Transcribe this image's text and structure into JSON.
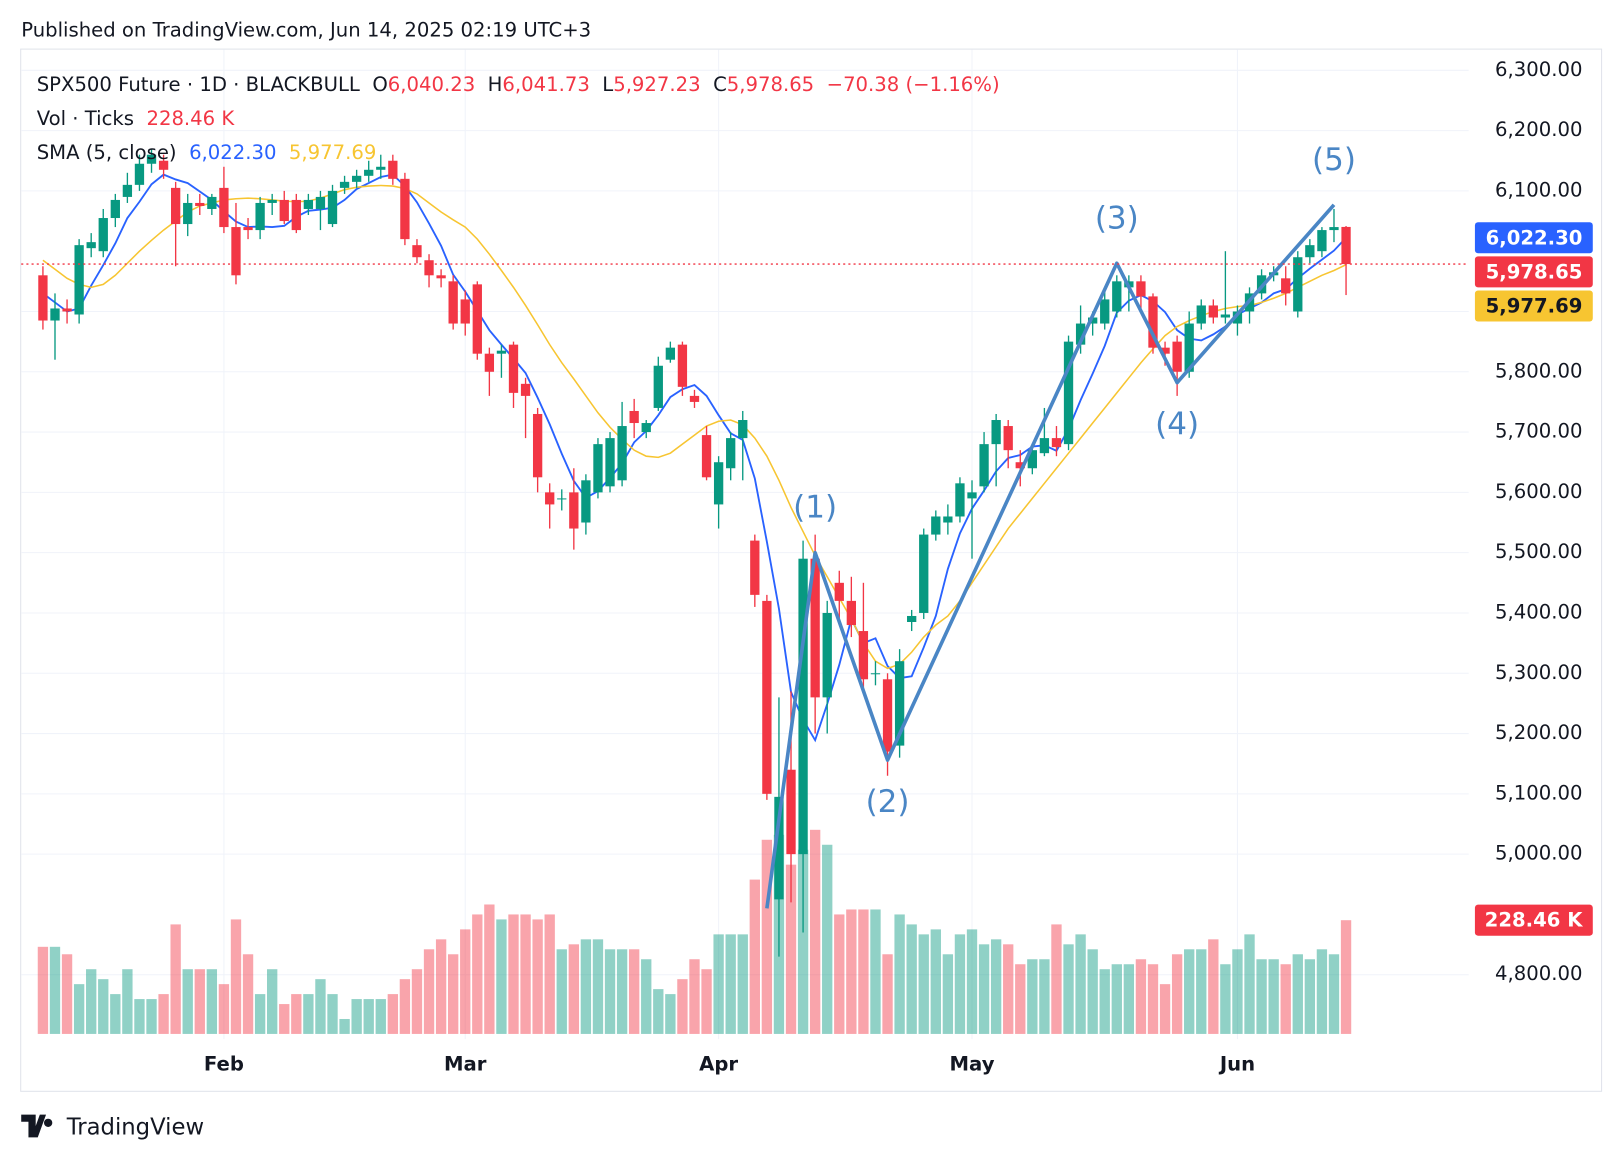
{
  "header": {
    "published": "Published on TradingView.com, Jun 14, 2025 02:19 UTC+3"
  },
  "chart_data": {
    "type": "candlestick",
    "legend": {
      "symbol": "SPX500 Future · 1D · BLACKBULL",
      "o_label": "O",
      "o": "6,040.23",
      "h_label": "H",
      "h": "6,041.73",
      "l_label": "L",
      "l": "5,927.23",
      "c_label": "C",
      "c": "5,978.65",
      "change": "−70.38 (−1.16%)",
      "volume_title": "Vol · Ticks",
      "volume": "228.46 K",
      "sma_title": "SMA (5, close)",
      "sma_fast": "6,022.30",
      "sma_slow": "5,977.69"
    },
    "categories": [
      null,
      null,
      null,
      null,
      null,
      null,
      null,
      null,
      null,
      null,
      null,
      null,
      null,
      null,
      null,
      "Feb",
      null,
      null,
      null,
      null,
      null,
      null,
      null,
      null,
      null,
      null,
      null,
      null,
      null,
      null,
      null,
      null,
      null,
      null,
      null,
      "Mar",
      null,
      null,
      null,
      null,
      null,
      null,
      null,
      null,
      null,
      null,
      null,
      null,
      null,
      null,
      null,
      null,
      null,
      null,
      null,
      null,
      "Apr",
      null,
      null,
      null,
      null,
      null,
      null,
      null,
      null,
      null,
      null,
      null,
      null,
      null,
      null,
      null,
      null,
      null,
      null,
      null,
      null,
      "May",
      null,
      null,
      null,
      null,
      null,
      null,
      null,
      null,
      null,
      null,
      null,
      null,
      null,
      null,
      null,
      null,
      null,
      null,
      null,
      null,
      null,
      "Jun",
      null,
      null,
      null,
      null,
      null,
      null,
      null,
      null,
      null
    ],
    "open": [
      5960,
      5885,
      5905,
      5895,
      6005,
      6000,
      6055,
      6090,
      6110,
      6145,
      6150,
      6105,
      6045,
      6080,
      6070,
      6105,
      6040,
      6040,
      6035,
      6080,
      6085,
      6085,
      6070,
      6070,
      6045,
      6105,
      6115,
      6125,
      6135,
      6150,
      6120,
      6010,
      5985,
      5960,
      5950,
      5920,
      5945,
      5830,
      5830,
      5845,
      5780,
      5730,
      5600,
      5590,
      5600,
      5550,
      5600,
      5610,
      5620,
      5735,
      5700,
      5740,
      5820,
      5845,
      5760,
      5695,
      5580,
      5640,
      5690,
      5520,
      5420,
      4925,
      5140,
      5000,
      5490,
      5260,
      5450,
      5420,
      5370,
      5300,
      5290,
      5180,
      5385,
      5400,
      5530,
      5550,
      5560,
      5590,
      5610,
      5680,
      5710,
      5650,
      5640,
      5665,
      5690,
      5680,
      5845,
      5880,
      5880,
      5900,
      5940,
      5950,
      5925,
      5840,
      5850,
      5800,
      5880,
      5910,
      5890,
      5880,
      5900,
      5930,
      5960,
      5955,
      5900,
      5990,
      6000,
      6035,
      6040.23
    ],
    "high": [
      5975,
      5930,
      5920,
      6020,
      6030,
      6070,
      6095,
      6130,
      6160,
      6170,
      6160,
      6115,
      6095,
      6095,
      6095,
      6140,
      6080,
      6055,
      6090,
      6095,
      6100,
      6095,
      6095,
      6100,
      6110,
      6125,
      6135,
      6150,
      6160,
      6160,
      6130,
      6020,
      5995,
      5970,
      5960,
      5935,
      5950,
      5840,
      5845,
      5850,
      5790,
      5740,
      5615,
      5605,
      5640,
      5630,
      5690,
      5700,
      5750,
      5755,
      5720,
      5825,
      5850,
      5850,
      5770,
      5710,
      5660,
      5700,
      5735,
      5530,
      5430,
      5260,
      5270,
      5520,
      5530,
      5420,
      5470,
      5460,
      5450,
      5320,
      5300,
      5340,
      5405,
      5540,
      5570,
      5580,
      5625,
      5620,
      5700,
      5730,
      5720,
      5670,
      5680,
      5740,
      5710,
      5860,
      5910,
      5900,
      5935,
      5960,
      5960,
      5960,
      5930,
      5850,
      5860,
      5900,
      5920,
      5920,
      6000,
      5910,
      5940,
      5970,
      5975,
      5975,
      6000,
      6020,
      6040,
      6070,
      6041.73
    ],
    "low": [
      5870,
      5820,
      5880,
      5880,
      5990,
      5990,
      6040,
      6080,
      6100,
      6130,
      6120,
      5975,
      6025,
      6060,
      6060,
      6030,
      5945,
      6020,
      6020,
      6060,
      6045,
      6030,
      6060,
      6035,
      6040,
      6095,
      6105,
      6115,
      6120,
      6110,
      6010,
      5980,
      5940,
      5940,
      5870,
      5860,
      5820,
      5760,
      5790,
      5740,
      5690,
      5600,
      5540,
      5570,
      5505,
      5530,
      5590,
      5600,
      5610,
      5690,
      5690,
      5735,
      5815,
      5760,
      5740,
      5620,
      5540,
      5620,
      5620,
      5410,
      5090,
      4830,
      4920,
      4870,
      5200,
      5200,
      5380,
      5360,
      5270,
      5280,
      5130,
      5160,
      5370,
      5390,
      5520,
      5530,
      5550,
      5490,
      5600,
      5610,
      5640,
      5610,
      5630,
      5660,
      5660,
      5670,
      5830,
      5860,
      5870,
      5890,
      5900,
      5900,
      5830,
      5810,
      5760,
      5790,
      5870,
      5880,
      5880,
      5860,
      5880,
      5920,
      5950,
      5910,
      5890,
      5980,
      5990,
      6015,
      5927.23
    ],
    "close": [
      5885,
      5905,
      5900,
      6010,
      6015,
      6055,
      6085,
      6110,
      6145,
      6160,
      6135,
      6045,
      6080,
      6075,
      6090,
      6040,
      5960,
      6035,
      6080,
      6085,
      6050,
      6035,
      6085,
      6090,
      6100,
      6115,
      6125,
      6135,
      6140,
      6120,
      6020,
      5990,
      5960,
      5955,
      5880,
      5880,
      5830,
      5800,
      5835,
      5765,
      5760,
      5625,
      5580,
      5590,
      5540,
      5620,
      5680,
      5690,
      5710,
      5715,
      5715,
      5810,
      5840,
      5775,
      5750,
      5625,
      5650,
      5690,
      5720,
      5430,
      5100,
      5095,
      5000,
      5490,
      5260,
      5400,
      5420,
      5380,
      5290,
      5300,
      5170,
      5320,
      5395,
      5530,
      5560,
      5560,
      5615,
      5600,
      5680,
      5720,
      5670,
      5640,
      5670,
      5690,
      5675,
      5850,
      5880,
      5890,
      5920,
      5950,
      5950,
      5925,
      5840,
      5830,
      5800,
      5880,
      5910,
      5890,
      5895,
      5900,
      5930,
      5960,
      5965,
      5930,
      5990,
      6010,
      6035,
      6040,
      5978.65
    ],
    "volume": [
      175,
      175,
      160,
      100,
      130,
      110,
      80,
      130,
      70,
      70,
      80,
      220,
      130,
      130,
      130,
      100,
      230,
      160,
      80,
      130,
      60,
      80,
      80,
      110,
      80,
      30,
      70,
      70,
      70,
      80,
      110,
      130,
      170,
      190,
      160,
      210,
      240,
      260,
      230,
      240,
      240,
      230,
      240,
      170,
      180,
      190,
      190,
      170,
      170,
      170,
      150,
      90,
      80,
      110,
      150,
      130,
      200,
      200,
      200,
      310,
      390,
      400,
      340,
      370,
      410,
      380,
      240,
      250,
      250,
      250,
      160,
      240,
      220,
      200,
      210,
      160,
      200,
      210,
      180,
      190,
      180,
      140,
      150,
      150,
      220,
      180,
      200,
      170,
      130,
      140,
      140,
      150,
      140,
      100,
      160,
      170,
      170,
      190,
      140,
      170,
      200,
      150,
      150,
      140,
      160,
      150,
      170,
      160,
      228.46
    ],
    "up_color": "#089981",
    "down_color": "#f23645",
    "overlays": [
      {
        "color": "#2962ff",
        "values": [
          5930,
          5915,
          5900,
          5905,
          5943,
          5977,
          6013,
          6055,
          6082,
          6111,
          6127,
          6119,
          6113,
          6099,
          6085,
          6066,
          6049,
          6040,
          6041,
          6040,
          6042,
          6057,
          6067,
          6069,
          6072,
          6085,
          6103,
          6113,
          6123,
          6127,
          6108,
          6081,
          6046,
          6009,
          5961,
          5933,
          5901,
          5869,
          5845,
          5822,
          5798,
          5757,
          5713,
          5664,
          5619,
          5591,
          5602,
          5624,
          5648,
          5683,
          5702,
          5728,
          5758,
          5771,
          5778,
          5760,
          5728,
          5698,
          5687,
          5623,
          5518,
          5407,
          5269,
          5223,
          5189,
          5249,
          5314,
          5390,
          5350,
          5358,
          5312,
          5292,
          5295,
          5343,
          5395,
          5473,
          5532,
          5573,
          5603,
          5635,
          5657,
          5662,
          5676,
          5678,
          5669,
          5705,
          5753,
          5797,
          5843,
          5898,
          5918,
          5927,
          5917,
          5899,
          5869,
          5855,
          5852,
          5862,
          5875,
          5895,
          5905,
          5915,
          5930,
          5937,
          5955,
          5971,
          5986,
          6001,
          6022.3
        ]
      },
      {
        "color": "#f7c531",
        "values": [
          5985,
          5970,
          5955,
          5945,
          5940,
          5945,
          5960,
          5980,
          6000,
          6018,
          6035,
          6050,
          6065,
          6075,
          6080,
          6085,
          6087,
          6088,
          6087,
          6085,
          6083,
          6082,
          6083,
          6088,
          6095,
          6102,
          6106,
          6108,
          6109,
          6108,
          6104,
          6095,
          6080,
          6065,
          6052,
          6040,
          6020,
          5995,
          5968,
          5940,
          5910,
          5878,
          5845,
          5815,
          5788,
          5760,
          5732,
          5708,
          5688,
          5670,
          5660,
          5658,
          5665,
          5680,
          5695,
          5710,
          5718,
          5720,
          5712,
          5690,
          5660,
          5620,
          5575,
          5535,
          5495,
          5460,
          5425,
          5390,
          5350,
          5320,
          5308,
          5315,
          5335,
          5360,
          5380,
          5395,
          5420,
          5450,
          5480,
          5510,
          5540,
          5565,
          5590,
          5615,
          5640,
          5665,
          5690,
          5715,
          5740,
          5765,
          5790,
          5815,
          5838,
          5860,
          5875,
          5885,
          5893,
          5900,
          5905,
          5908,
          5910,
          5915,
          5922,
          5930,
          5940,
          5950,
          5960,
          5968,
          5977.69
        ]
      }
    ],
    "wave": {
      "color": "#4a86c5",
      "x": [
        60,
        64,
        70,
        89,
        94,
        107
      ],
      "values": [
        4910,
        5500,
        5156,
        5980,
        5782,
        6077
      ],
      "labels": [
        "(1)",
        "(2)",
        "(3)",
        "(4)",
        "(5)"
      ]
    },
    "ylim": [
      4607.5,
      6382.3
    ],
    "yticks": [
      {
        "value": 6300,
        "label": "6,300.00"
      },
      {
        "value": 6200,
        "label": "6,200.00"
      },
      {
        "value": 6100,
        "label": "6,100.00"
      },
      {
        "value": 5900,
        "label": "5,900.00"
      },
      {
        "value": 5800,
        "label": "5,800.00"
      },
      {
        "value": 5700,
        "label": "5,700.00"
      },
      {
        "value": 5600,
        "label": "5,600.00"
      },
      {
        "value": 5500,
        "label": "5,500.00"
      },
      {
        "value": 5400,
        "label": "5,400.00"
      },
      {
        "value": 5300,
        "label": "5,300.00"
      },
      {
        "value": 5200,
        "label": "5,200.00"
      },
      {
        "value": 5100,
        "label": "5,100.00"
      },
      {
        "value": 5000,
        "label": "5,000.00"
      },
      {
        "value": 4800,
        "label": "4,800.00"
      }
    ],
    "grid": true
  },
  "footer": {
    "brand": "TradingView"
  }
}
